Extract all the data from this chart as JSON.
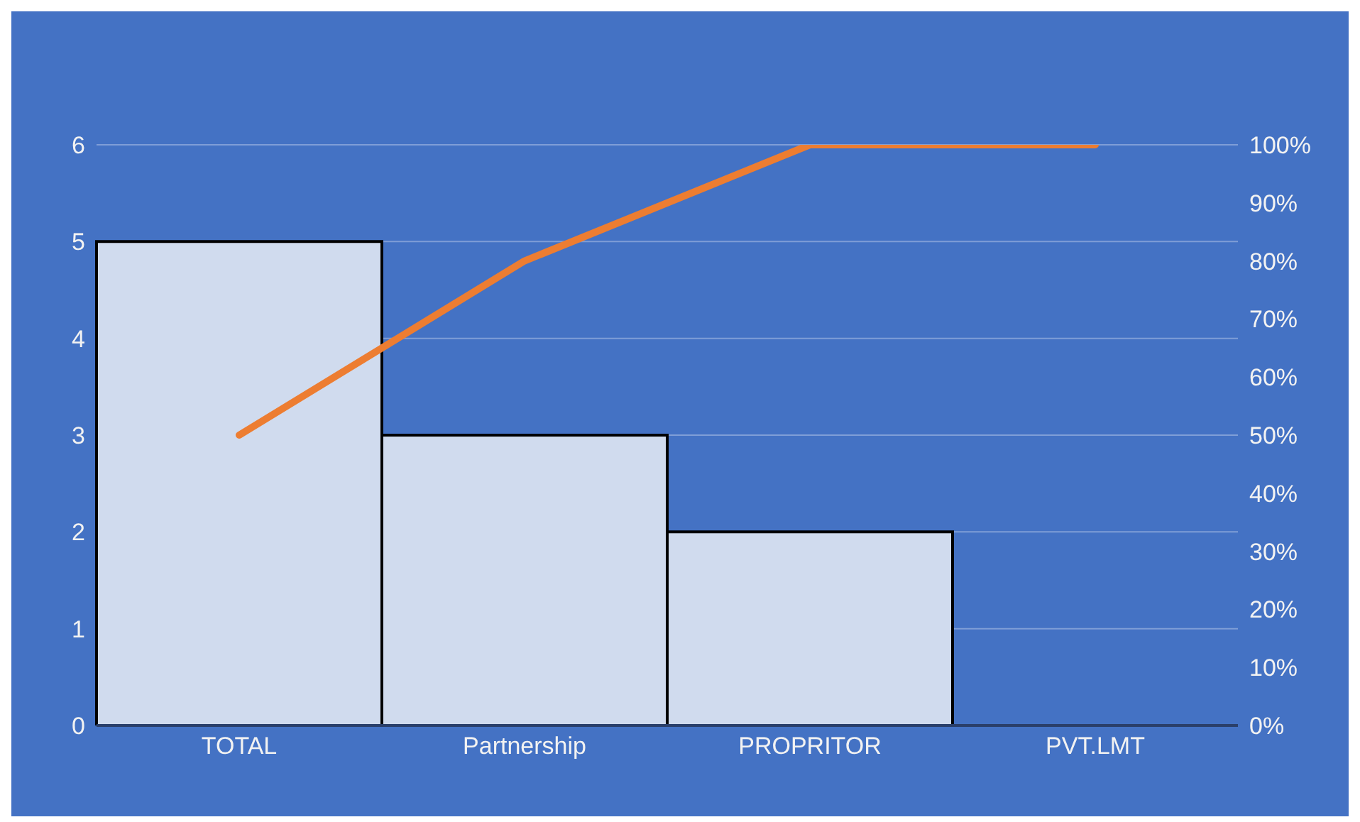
{
  "chart_data": {
    "type": "bar",
    "categories": [
      "TOTAL",
      "Partnership",
      "PROPRITOR",
      "PVT.LMT"
    ],
    "series": [
      {
        "color": "#d0dbee",
        "values": [
          5,
          3,
          2,
          0
        ]
      },
      {
        "type": "line",
        "color": "#ed7d31",
        "axis": "y2",
        "values": [
          50,
          80,
          100,
          100
        ]
      }
    ],
    "ylim": [
      0,
      6
    ],
    "yticks": [
      0,
      1,
      2,
      3,
      4,
      5,
      6
    ],
    "y2lim": [
      0,
      100
    ],
    "y2ticks": [
      {
        "value": 0,
        "label": "0%"
      },
      {
        "value": 10,
        "label": "10%"
      },
      {
        "value": 20,
        "label": "20%"
      },
      {
        "value": 30,
        "label": "30%"
      },
      {
        "value": 40,
        "label": "40%"
      },
      {
        "value": 50,
        "label": "50%"
      },
      {
        "value": 60,
        "label": "60%"
      },
      {
        "value": 70,
        "label": "70%"
      },
      {
        "value": 80,
        "label": "80%"
      },
      {
        "value": 90,
        "label": "90%"
      },
      {
        "value": 100,
        "label": "100%"
      }
    ],
    "grid": "y",
    "marker": "none"
  }
}
